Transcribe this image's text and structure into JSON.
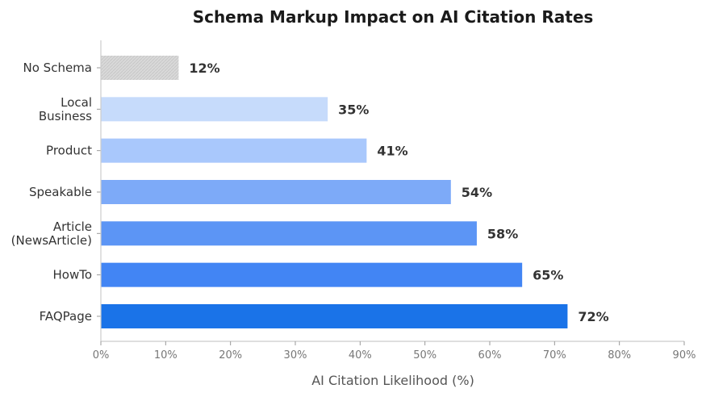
{
  "chart_data": {
    "type": "bar",
    "orientation": "horizontal",
    "title": "Schema Markup Impact on AI Citation Rates",
    "xlabel": "AI Citation Likelihood (%)",
    "ylabel": "",
    "xlim": [
      0,
      90
    ],
    "x_ticks": [
      "0%",
      "10%",
      "20%",
      "30%",
      "40%",
      "50%",
      "60%",
      "70%",
      "80%",
      "90%"
    ],
    "categories": [
      [
        "No Schema"
      ],
      [
        "Local",
        "Business"
      ],
      [
        "Product"
      ],
      [
        "Speakable"
      ],
      [
        "Article",
        "(NewsArticle)"
      ],
      [
        "HowTo"
      ],
      [
        "FAQPage"
      ]
    ],
    "values": [
      12,
      35,
      41,
      54,
      58,
      65,
      72
    ],
    "data_labels": [
      "12%",
      "35%",
      "41%",
      "54%",
      "58%",
      "65%",
      "72%"
    ],
    "colors": [
      "#d9d9d9",
      "#c6dbfb",
      "#a9c8fc",
      "#7daaf8",
      "#5c95f5",
      "#4285f4",
      "#1a73e8"
    ],
    "grid": false,
    "legend": "none"
  }
}
